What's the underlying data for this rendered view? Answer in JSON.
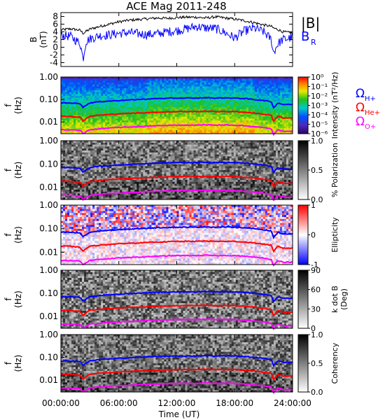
{
  "title": "ACE Mag 2011-248",
  "x_axis": {
    "label": "Time (UT)",
    "ticks": [
      "00:00:00",
      "06:00:00",
      "12:00:00",
      "18:00:00",
      "24:00:00"
    ]
  },
  "legend": {
    "b_mag": "|B|",
    "b_r": "B",
    "b_r_sub": "R",
    "omega": "Ω",
    "h_sub": "H+",
    "he_sub": "He+",
    "o_sub": "O+"
  },
  "colors": {
    "b_mag": "#000000",
    "b_r": "#0000ff",
    "h_plus": "#0000ff",
    "he_plus": "#ff0000",
    "o_plus": "#ff00ff"
  },
  "panels": [
    {
      "id": "field",
      "ylabel": "B",
      "yunit": "(nT)",
      "yticks": [
        "8",
        "6",
        "4",
        "2",
        "0",
        "-2",
        "-4"
      ]
    },
    {
      "id": "intensity",
      "ylabel": "f",
      "yunit": "(Hz)",
      "yticks": [
        "1.00",
        "0.10",
        "0.01"
      ],
      "cbar_label": "Intensity (nT²/Hz)",
      "cbar_ticks": [
        "10⁰",
        "10⁻¹",
        "10⁻²",
        "10⁻³",
        "10⁻⁴",
        "10⁻⁵",
        "10⁻⁶"
      ],
      "colormap": "rainbow"
    },
    {
      "id": "polarization",
      "ylabel": "f",
      "yunit": "(Hz)",
      "yticks": [
        "1.00",
        "0.10",
        "0.01"
      ],
      "cbar_label": "% Polarization",
      "cbar_ticks": [
        "1.0",
        "0.5",
        "0.0"
      ],
      "colormap": "gray"
    },
    {
      "id": "ellipticity",
      "ylabel": "f",
      "yunit": "(Hz)",
      "yticks": [
        "1.00",
        "0.10",
        "0.01"
      ],
      "cbar_label": "Ellipticity",
      "cbar_ticks": [
        "1",
        "0",
        "-1"
      ],
      "colormap": "bwr"
    },
    {
      "id": "kdotb",
      "ylabel": "f",
      "yunit": "(Hz)",
      "yticks": [
        "1.00",
        "0.10",
        "0.01"
      ],
      "cbar_label": "k dot B",
      "cbar_label2": "(Deg)",
      "cbar_ticks": [
        "90",
        "60",
        "30",
        "0"
      ],
      "colormap": "gray"
    },
    {
      "id": "coherency",
      "ylabel": "f",
      "yunit": "(Hz)",
      "yticks": [
        "1.00",
        "0.10",
        "0.01"
      ],
      "cbar_label": "Coherency",
      "cbar_ticks": [
        "1.0",
        "0.5",
        "0.0"
      ],
      "colormap": "gray"
    }
  ],
  "chart_data": [
    {
      "type": "line",
      "x": [
        0,
        1,
        2,
        2.3,
        2.6,
        3,
        4,
        5,
        6,
        7,
        8,
        9,
        10,
        11,
        12,
        13,
        14,
        15,
        16,
        17,
        18,
        19,
        20,
        21,
        21.8,
        22,
        22.5,
        23,
        24
      ],
      "ylim": [
        -5,
        9
      ],
      "series": [
        {
          "name": "|B|",
          "values": [
            4.5,
            4.8,
            4.4,
            3.6,
            4.1,
            4.7,
            5.4,
            6.0,
            6.6,
            7.0,
            7.2,
            7.4,
            7.6,
            7.5,
            7.7,
            7.8,
            7.8,
            7.6,
            7.9,
            7.6,
            7.3,
            6.9,
            6.4,
            5.8,
            5.4,
            5.0,
            4.6,
            4.0,
            3.7
          ]
        },
        {
          "name": "B_R",
          "values": [
            3.2,
            2.8,
            1.0,
            -3.0,
            1.5,
            2.2,
            3.0,
            3.2,
            3.6,
            3.8,
            3.5,
            3.3,
            3.5,
            4.0,
            4.3,
            4.8,
            5.4,
            5.0,
            4.9,
            3.8,
            2.4,
            4.2,
            5.0,
            4.0,
            2.0,
            -1.5,
            1.0,
            2.0,
            2.5
          ]
        }
      ]
    },
    {
      "type": "line",
      "x": [
        0,
        1,
        2,
        2.3,
        2.6,
        3,
        4,
        6,
        8,
        10,
        12,
        14,
        15,
        16,
        17,
        18,
        19,
        20,
        21,
        21.8,
        22,
        22.5,
        23,
        24
      ],
      "ylabel": "f (Hz)",
      "yscale": "log",
      "ylim": [
        0.003,
        1.0
      ],
      "series": [
        {
          "name": "Ω H+",
          "values": [
            0.07,
            0.07,
            0.065,
            0.045,
            0.055,
            0.07,
            0.08,
            0.09,
            0.1,
            0.11,
            0.115,
            0.115,
            0.12,
            0.115,
            0.118,
            0.115,
            0.11,
            0.1,
            0.09,
            0.08,
            0.04,
            0.07,
            0.06,
            0.06
          ]
        },
        {
          "name": "Ω He+",
          "values": [
            0.018,
            0.018,
            0.016,
            0.011,
            0.014,
            0.018,
            0.02,
            0.023,
            0.025,
            0.027,
            0.029,
            0.029,
            0.03,
            0.029,
            0.029,
            0.029,
            0.027,
            0.025,
            0.022,
            0.02,
            0.01,
            0.018,
            0.015,
            0.015
          ]
        },
        {
          "name": "Ω O+",
          "values": [
            0.0045,
            0.0045,
            0.0042,
            0.003,
            0.0036,
            0.0045,
            0.005,
            0.0057,
            0.0062,
            0.0068,
            0.0072,
            0.0072,
            0.0075,
            0.0072,
            0.0073,
            0.0072,
            0.0068,
            0.0062,
            0.0056,
            0.005,
            0.0026,
            0.0045,
            0.0038,
            0.0038
          ]
        }
      ]
    }
  ]
}
